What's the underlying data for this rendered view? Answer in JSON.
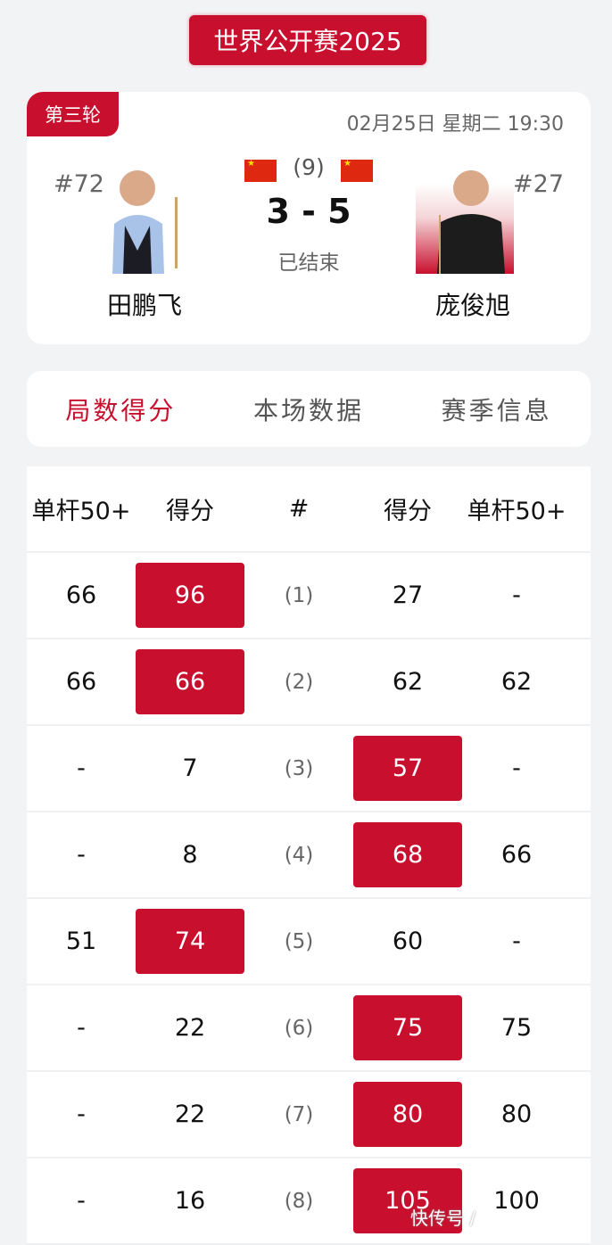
{
  "title": "世界公开赛2025",
  "match": {
    "round": "第三轮",
    "datetime": "02月25日 星期二 19:30",
    "frames_best_of": "(9)",
    "score": "3 - 5",
    "status": "已结束",
    "left_player": {
      "rank": "#72",
      "name": "田鹏飞",
      "flag": "china-flag"
    },
    "right_player": {
      "rank": "#27",
      "name": "庞俊旭",
      "flag": "china-flag"
    }
  },
  "tabs": [
    {
      "label": "局数得分",
      "active": true
    },
    {
      "label": "本场数据",
      "active": false
    },
    {
      "label": "赛季信息",
      "active": false
    }
  ],
  "table": {
    "headers": [
      "单杆50+",
      "得分",
      "#",
      "得分",
      "单杆50+"
    ],
    "rows": [
      [
        "66",
        "96",
        "(1)",
        "27",
        "-"
      ],
      [
        "66",
        "66",
        "(2)",
        "62",
        "62"
      ],
      [
        "-",
        "7",
        "(3)",
        "57",
        "-"
      ],
      [
        "-",
        "8",
        "(4)",
        "68",
        "66"
      ],
      [
        "51",
        "74",
        "(5)",
        "60",
        "-"
      ],
      [
        "-",
        "22",
        "(6)",
        "75",
        "75"
      ],
      [
        "-",
        "22",
        "(7)",
        "80",
        "80"
      ],
      [
        "-",
        "16",
        "(8)",
        "105",
        "100"
      ]
    ],
    "winner": [
      "left",
      "left",
      "right",
      "right",
      "left",
      "right",
      "right",
      "right"
    ]
  },
  "accent_color": "#c8102e",
  "watermark": "快传号 /"
}
